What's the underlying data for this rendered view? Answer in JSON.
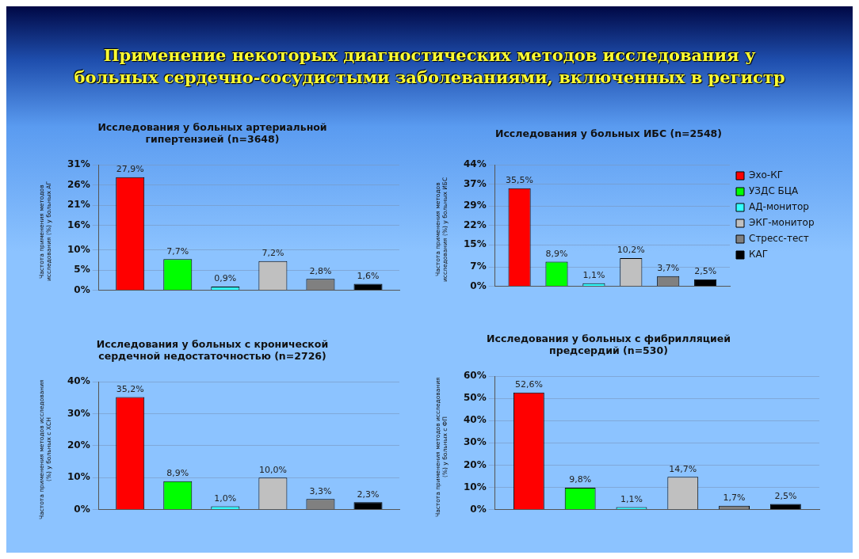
{
  "chart_data": [
    {
      "type": "bar",
      "annotations": [
        "Применение некоторых диагностических методов исследования у больных сердечно-сосудистыми заболеваниями, включенных в регистр"
      ],
      "title": "Исследования у больных артериальной гипертензией (n=3648)",
      "ylabel": "Частота применения методов исследования (%) у больных АГ",
      "categories": [
        null
      ],
      "ylim": [
        0,
        31
      ],
      "yticks": [
        {
          "value": 0,
          "label": "0%"
        },
        {
          "value": 5,
          "label": "5%"
        },
        {
          "value": 10,
          "label": "10%"
        },
        {
          "value": 16,
          "label": "16%"
        },
        {
          "value": 21,
          "label": "21%"
        },
        {
          "value": 26,
          "label": "26%"
        },
        {
          "value": 31,
          "label": "31%"
        }
      ],
      "grid": "y",
      "legend": false,
      "series": [
        {
          "color": "#ff0000",
          "values": [
            27.9
          ],
          "value_labels": [
            "27,9%"
          ]
        },
        {
          "color": "#00ff00",
          "values": [
            7.7
          ],
          "value_labels": [
            "7,7%"
          ]
        },
        {
          "color": "#33ffff",
          "values": [
            0.9
          ],
          "value_labels": [
            "0,9%"
          ]
        },
        {
          "color": "#c0c0c0",
          "values": [
            7.2
          ],
          "value_labels": [
            "7,2%"
          ]
        },
        {
          "color": "#808080",
          "values": [
            2.8
          ],
          "value_labels": [
            "2,8%"
          ]
        },
        {
          "color": "#000000",
          "values": [
            1.6
          ],
          "value_labels": [
            "1,6%"
          ]
        }
      ]
    },
    {
      "type": "bar",
      "title": "Исследования у больных ИБС (n=2548)",
      "ylabel": "Частота применения методов исследования (%) у больных ИБС",
      "categories": [
        null
      ],
      "ylim": [
        0,
        44
      ],
      "yticks": [
        {
          "value": 0,
          "label": "0%"
        },
        {
          "value": 7,
          "label": "7%"
        },
        {
          "value": 15,
          "label": "15%"
        },
        {
          "value": 22,
          "label": "22%"
        },
        {
          "value": 29,
          "label": "29%"
        },
        {
          "value": 37,
          "label": "37%"
        },
        {
          "value": 44,
          "label": "44%"
        }
      ],
      "grid": "y",
      "legend": "right",
      "series": [
        {
          "name": "Эхо-КГ",
          "color": "#ff0000",
          "values": [
            35.5
          ],
          "value_labels": [
            "35,5%"
          ]
        },
        {
          "name": "УЗДС БЦА",
          "color": "#00ff00",
          "values": [
            8.9
          ],
          "value_labels": [
            "8,9%"
          ]
        },
        {
          "name": "АД-монитор",
          "color": "#33ffff",
          "values": [
            1.1
          ],
          "value_labels": [
            "1,1%"
          ]
        },
        {
          "name": "ЭКГ-монитор",
          "color": "#c0c0c0",
          "values": [
            10.2
          ],
          "value_labels": [
            "10,2%"
          ]
        },
        {
          "name": "Стресс-тест",
          "color": "#808080",
          "values": [
            3.7
          ],
          "value_labels": [
            "3,7%"
          ]
        },
        {
          "name": "КАГ",
          "color": "#000000",
          "values": [
            2.5
          ],
          "value_labels": [
            "2,5%"
          ]
        }
      ]
    },
    {
      "type": "bar",
      "title": "Исследования у больных с кронической сердечной недостаточностью (n=2726)",
      "ylabel": "Частота применения методов исследования (%) у больных с ХСН",
      "categories": [
        null
      ],
      "ylim": [
        0,
        40
      ],
      "yticks": [
        {
          "value": 0,
          "label": "0%"
        },
        {
          "value": 10,
          "label": "10%"
        },
        {
          "value": 20,
          "label": "20%"
        },
        {
          "value": 30,
          "label": "30%"
        },
        {
          "value": 40,
          "label": "40%"
        }
      ],
      "grid": "y",
      "legend": false,
      "series": [
        {
          "color": "#ff0000",
          "values": [
            35.2
          ],
          "value_labels": [
            "35,2%"
          ]
        },
        {
          "color": "#00ff00",
          "values": [
            8.9
          ],
          "value_labels": [
            "8,9%"
          ]
        },
        {
          "color": "#33ffff",
          "values": [
            1.0
          ],
          "value_labels": [
            "1,0%"
          ]
        },
        {
          "color": "#c0c0c0",
          "values": [
            10.0
          ],
          "value_labels": [
            "10,0%"
          ]
        },
        {
          "color": "#808080",
          "values": [
            3.3
          ],
          "value_labels": [
            "3,3%"
          ]
        },
        {
          "color": "#000000",
          "values": [
            2.3
          ],
          "value_labels": [
            "2,3%"
          ]
        }
      ]
    },
    {
      "type": "bar",
      "title": "Исследования у больных с фибрилляцией предсердий (n=530)",
      "ylabel": "Частота применения методов исследования (%) у больных с ФП",
      "categories": [
        null
      ],
      "ylim": [
        0,
        60
      ],
      "yticks": [
        {
          "value": 0,
          "label": "0%"
        },
        {
          "value": 10,
          "label": "10%"
        },
        {
          "value": 20,
          "label": "20%"
        },
        {
          "value": 30,
          "label": "30%"
        },
        {
          "value": 40,
          "label": "40%"
        },
        {
          "value": 50,
          "label": "50%"
        },
        {
          "value": 60,
          "label": "60%"
        }
      ],
      "grid": "y",
      "legend": false,
      "series": [
        {
          "color": "#ff0000",
          "values": [
            52.6
          ],
          "value_labels": [
            "52,6%"
          ]
        },
        {
          "color": "#00ff00",
          "values": [
            9.8
          ],
          "value_labels": [
            "9,8%"
          ]
        },
        {
          "color": "#33ffff",
          "values": [
            1.1
          ],
          "value_labels": [
            "1,1%"
          ]
        },
        {
          "color": "#c0c0c0",
          "values": [
            14.7
          ],
          "value_labels": [
            "14,7%"
          ]
        },
        {
          "color": "#808080",
          "values": [
            1.7
          ],
          "value_labels": [
            "1,7%"
          ]
        },
        {
          "color": "#000000",
          "values": [
            2.5
          ],
          "value_labels": [
            "2,5%"
          ]
        }
      ]
    }
  ]
}
